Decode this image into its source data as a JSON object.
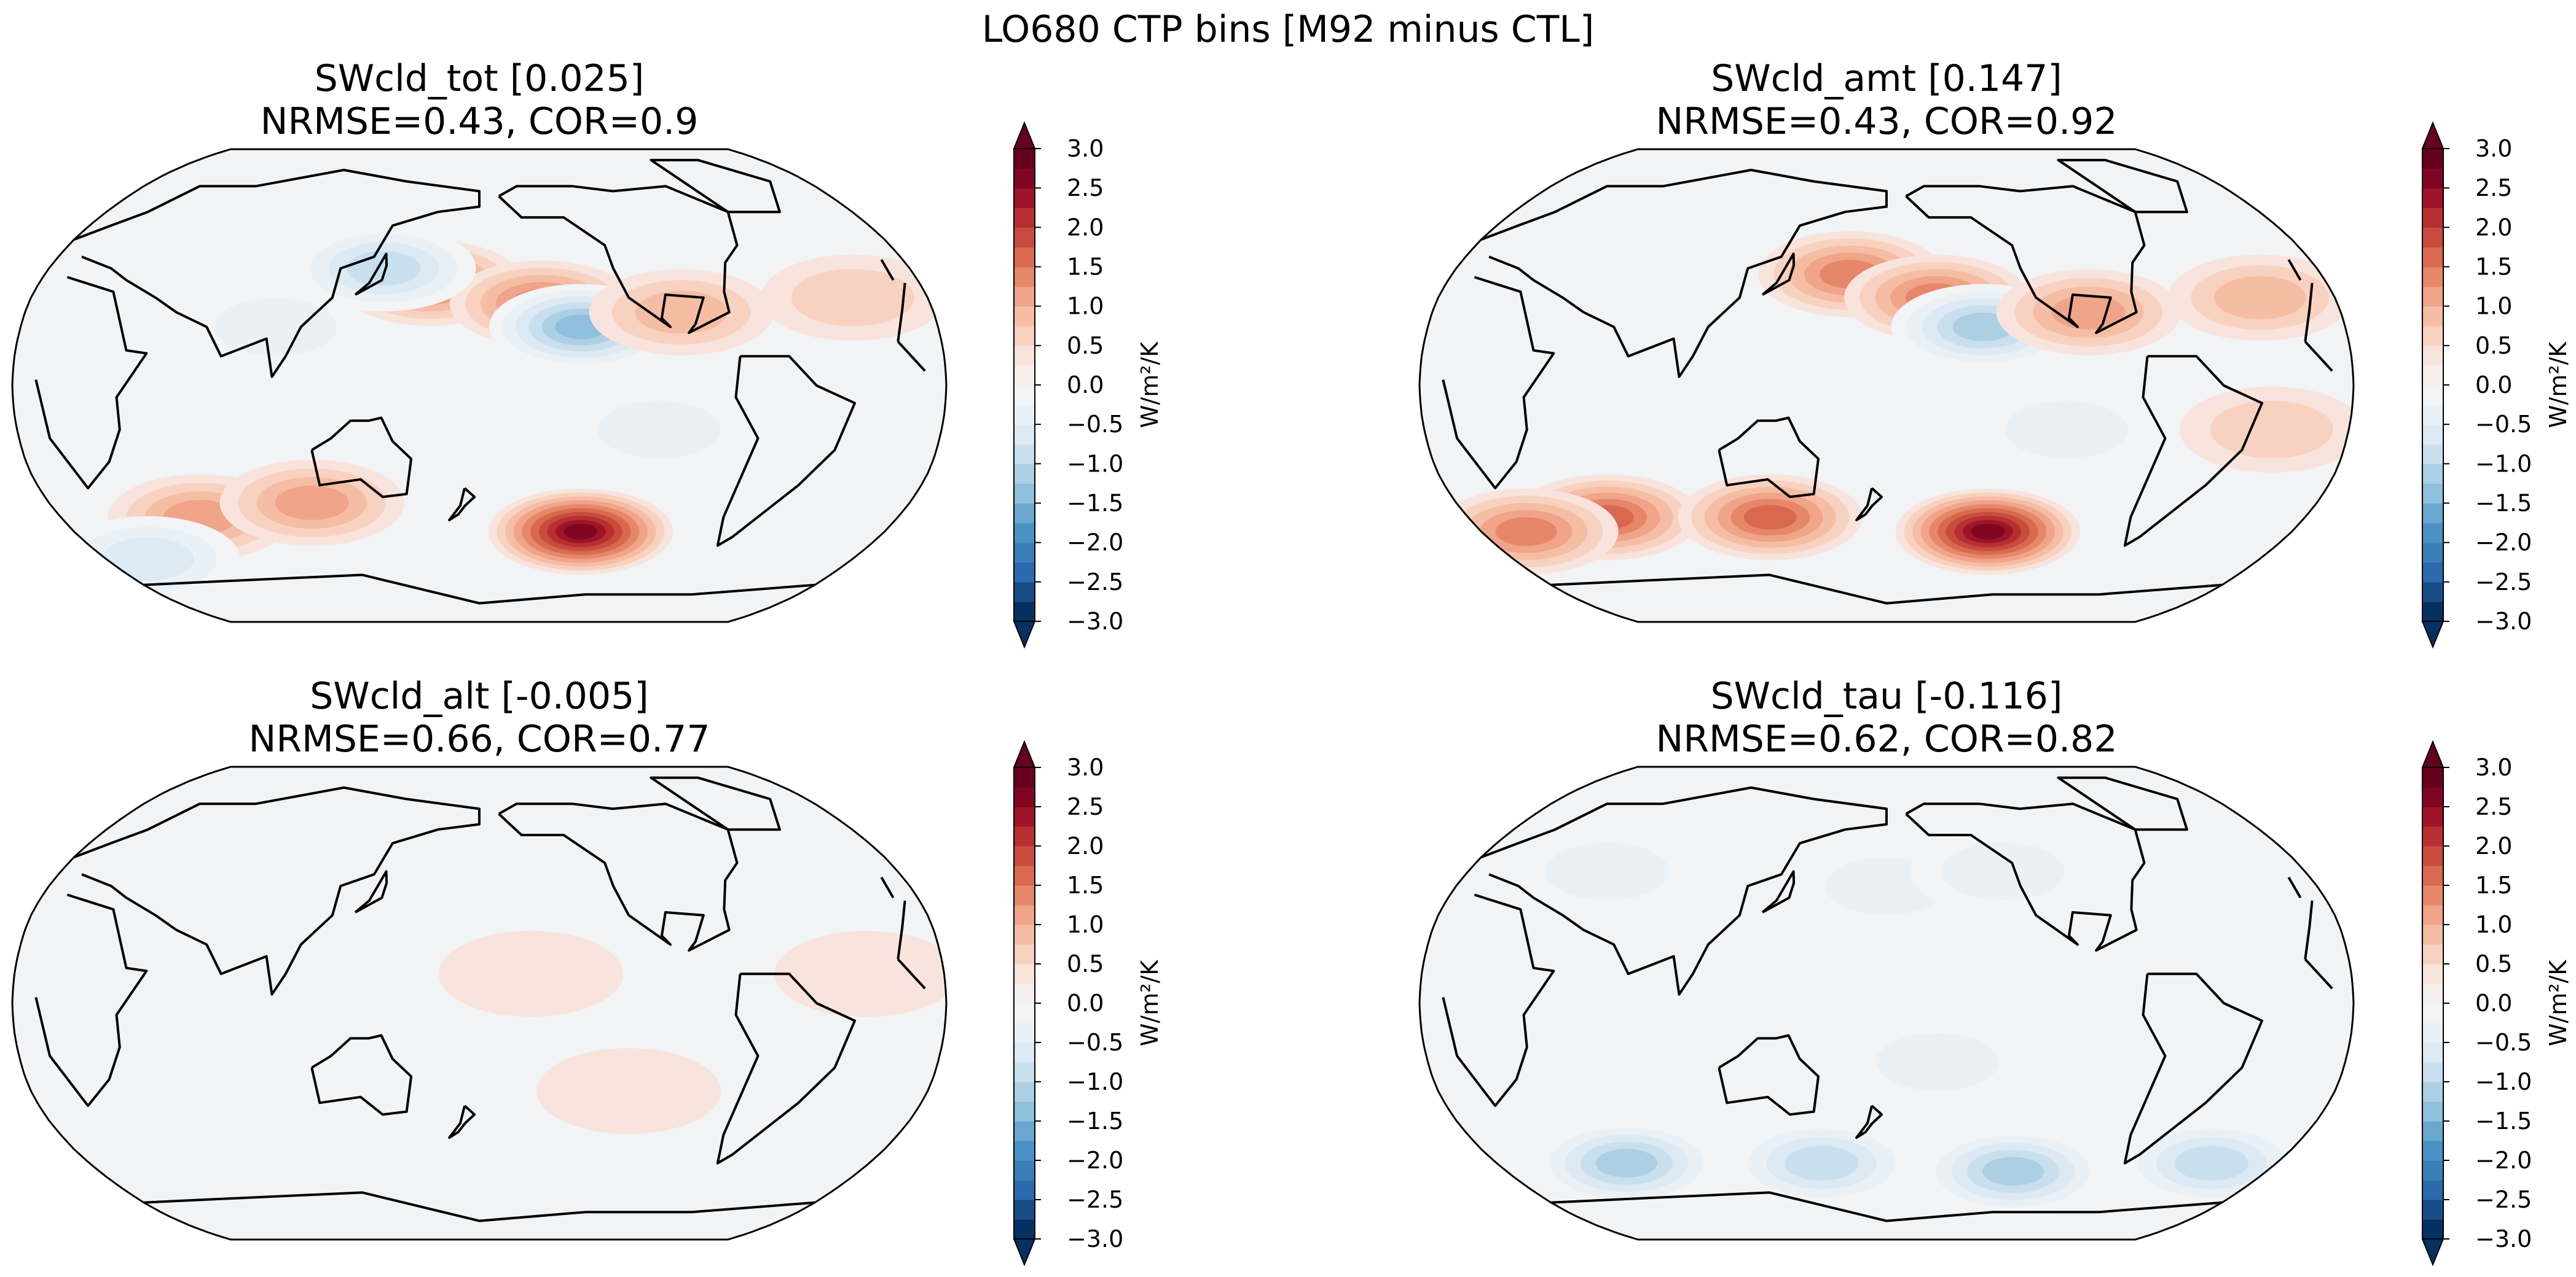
{
  "figure_title": "LO680 CTP bins [M92 minus CTL]",
  "colorbar": {
    "label": "W/m²/K",
    "ticks": [
      "3.0",
      "2.5",
      "2.0",
      "1.5",
      "1.0",
      "0.5",
      "0.0",
      "−0.5",
      "−1.0",
      "−1.5",
      "−2.0",
      "−2.5",
      "−3.0"
    ],
    "range": [
      -3.0,
      3.0
    ],
    "levels": 24,
    "extend": "both",
    "colors_low_to_high": [
      "#053061",
      "#184d87",
      "#2a6aad",
      "#3a7fb8",
      "#4a92c4",
      "#6aa8d0",
      "#8fc0dd",
      "#adcfe4",
      "#c8dfee",
      "#dde9f3",
      "#eaf1f6",
      "#f2f4f6",
      "#f6efed",
      "#f8e4dc",
      "#f8d2c0",
      "#f5bea4",
      "#f0a489",
      "#e58768",
      "#d8694f",
      "#c84c3e",
      "#b72f30",
      "#9e1428",
      "#7f0523",
      "#67001f"
    ]
  },
  "chart_data": [
    {
      "type": "heatmap",
      "projection": "Robinson (Pacific-centred)",
      "title": "SWcld_tot [0.025]",
      "subtitle": "NRMSE=0.43, COR=0.9",
      "variable": "SWcld_tot",
      "global_mean": 0.025,
      "NRMSE": 0.43,
      "COR": 0.9,
      "clabel": "W/m²/K",
      "crange": [
        -3.0,
        3.0
      ],
      "anomalies": [
        {
          "lon": 160,
          "lat": 35,
          "value": 1.2
        },
        {
          "lon": 205,
          "lat": 28,
          "value": 1.3
        },
        {
          "lon": 220,
          "lat": 20,
          "value": -1.4
        },
        {
          "lon": 140,
          "lat": 40,
          "value": -1.0
        },
        {
          "lon": 225,
          "lat": -50,
          "value": 2.5
        },
        {
          "lon": 60,
          "lat": -45,
          "value": 1.0
        },
        {
          "lon": 110,
          "lat": -40,
          "value": 0.9
        },
        {
          "lon": 250,
          "lat": -15,
          "value": -0.6
        },
        {
          "lon": 20,
          "lat": -60,
          "value": -0.8
        },
        {
          "lon": 260,
          "lat": 25,
          "value": 0.8
        },
        {
          "lon": 100,
          "lat": 20,
          "value": -0.6
        },
        {
          "lon": 330,
          "lat": 30,
          "value": 0.6
        }
      ]
    },
    {
      "type": "heatmap",
      "projection": "Robinson (Pacific-centred)",
      "title": "SWcld_amt [0.147]",
      "subtitle": "NRMSE=0.43, COR=0.92",
      "variable": "SWcld_amt",
      "global_mean": 0.147,
      "NRMSE": 0.43,
      "COR": 0.92,
      "clabel": "W/m²/K",
      "crange": [
        -3.0,
        3.0
      ],
      "anomalies": [
        {
          "lon": 165,
          "lat": 38,
          "value": 1.3
        },
        {
          "lon": 200,
          "lat": 30,
          "value": 1.2
        },
        {
          "lon": 218,
          "lat": 20,
          "value": -1.3
        },
        {
          "lon": 225,
          "lat": -50,
          "value": 2.6
        },
        {
          "lon": 60,
          "lat": -45,
          "value": 1.6
        },
        {
          "lon": 130,
          "lat": -45,
          "value": 1.5
        },
        {
          "lon": 20,
          "lat": -50,
          "value": 1.2
        },
        {
          "lon": 250,
          "lat": -15,
          "value": -0.5
        },
        {
          "lon": 260,
          "lat": 25,
          "value": 0.9
        },
        {
          "lon": 330,
          "lat": 30,
          "value": 0.7
        },
        {
          "lon": 330,
          "lat": -15,
          "value": 0.5
        }
      ]
    },
    {
      "type": "heatmap",
      "projection": "Robinson (Pacific-centred)",
      "title": "SWcld_alt [-0.005]",
      "subtitle": "NRMSE=0.66, COR=0.77",
      "variable": "SWcld_alt",
      "global_mean": -0.005,
      "NRMSE": 0.66,
      "COR": 0.77,
      "clabel": "W/m²/K",
      "crange": [
        -3.0,
        3.0
      ],
      "anomalies": [
        {
          "lon": 200,
          "lat": 10,
          "value": 0.2
        },
        {
          "lon": 120,
          "lat": -20,
          "value": -0.2
        },
        {
          "lon": 240,
          "lat": -30,
          "value": 0.2
        },
        {
          "lon": 330,
          "lat": 10,
          "value": 0.2
        },
        {
          "lon": 20,
          "lat": -30,
          "value": -0.2
        }
      ]
    },
    {
      "type": "heatmap",
      "projection": "Robinson (Pacific-centred)",
      "title": "SWcld_tau [-0.116]",
      "subtitle": "NRMSE=0.62, COR=0.82",
      "variable": "SWcld_tau",
      "global_mean": -0.116,
      "NRMSE": 0.62,
      "COR": 0.82,
      "clabel": "W/m²/K",
      "crange": [
        -3.0,
        3.0
      ],
      "anomalies": [
        {
          "lon": 180,
          "lat": 40,
          "value": -0.6
        },
        {
          "lon": 230,
          "lat": 45,
          "value": -0.5
        },
        {
          "lon": 60,
          "lat": 45,
          "value": -0.5
        },
        {
          "lon": 60,
          "lat": -55,
          "value": -1.3
        },
        {
          "lon": 150,
          "lat": -55,
          "value": -1.1
        },
        {
          "lon": 240,
          "lat": -58,
          "value": -1.2
        },
        {
          "lon": 330,
          "lat": -55,
          "value": -1.0
        },
        {
          "lon": 200,
          "lat": -20,
          "value": -0.4
        }
      ]
    }
  ]
}
